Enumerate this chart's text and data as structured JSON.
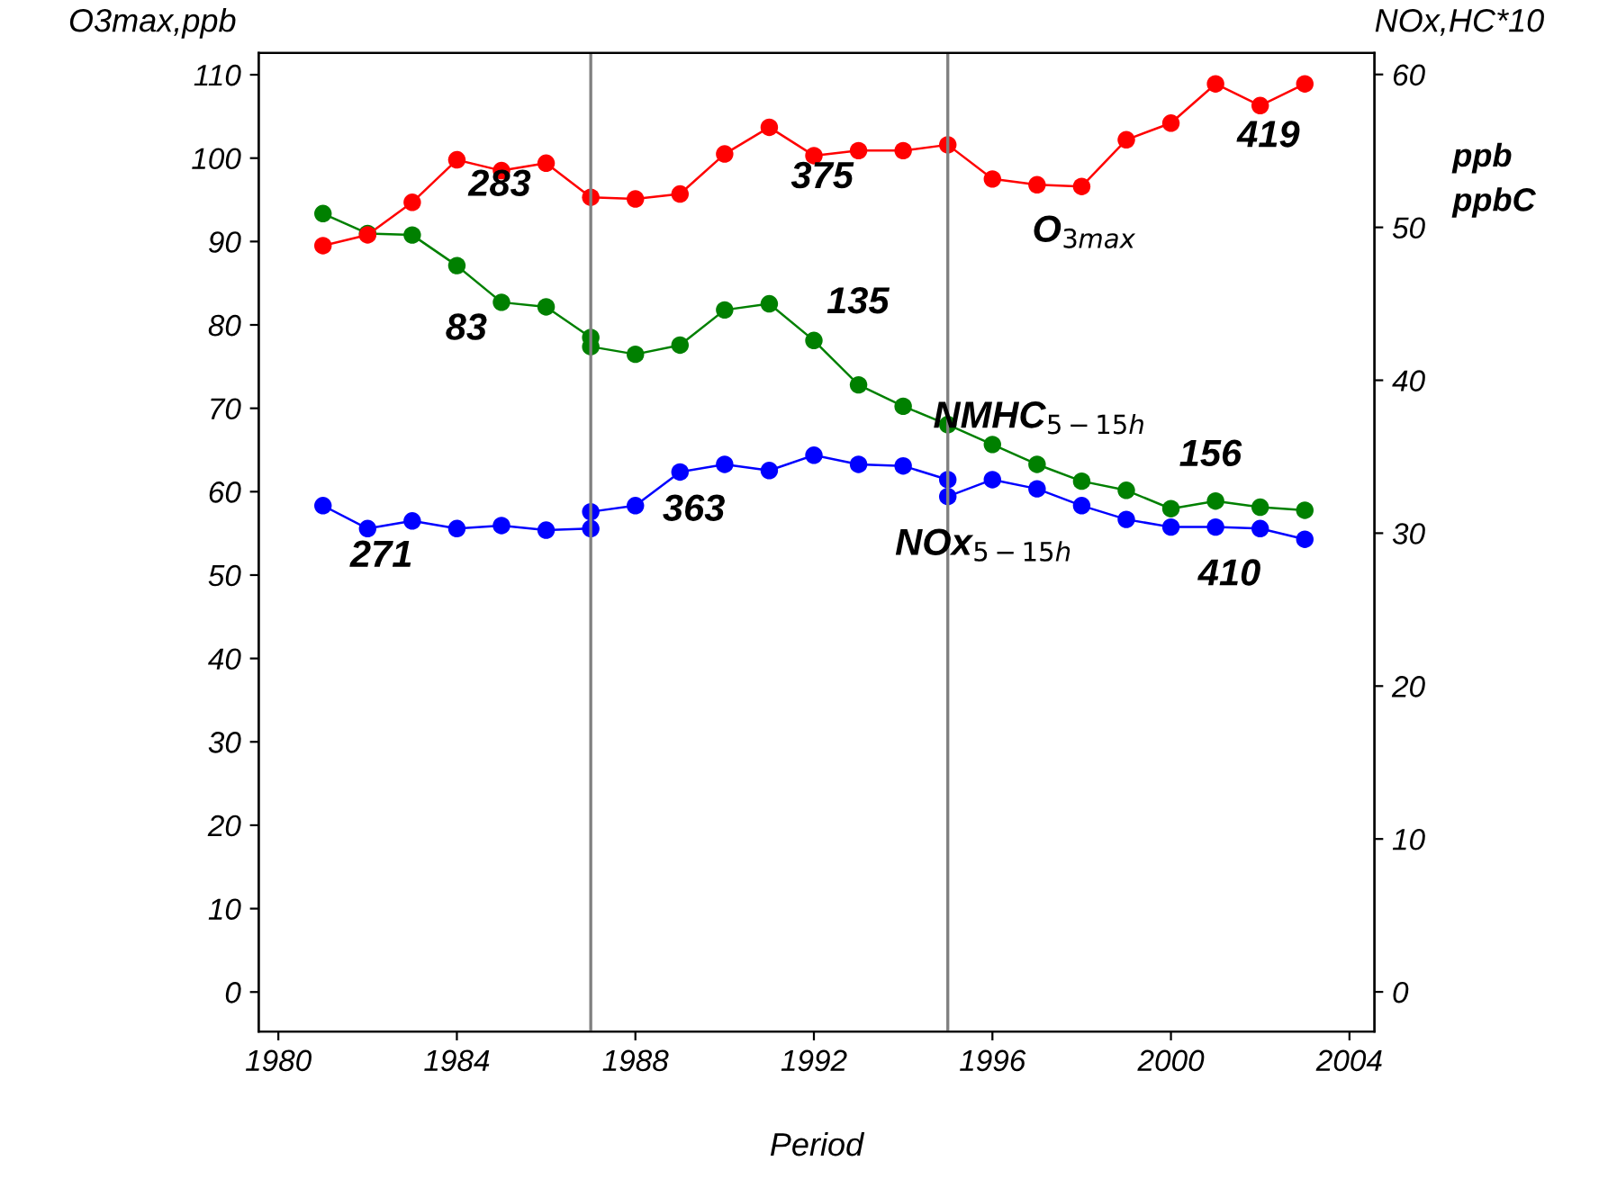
{
  "chart_data": {
    "type": "line",
    "xlabel": "Period",
    "ylabel": "O3max,ppb",
    "y2label": "NOx,HC*10",
    "xlim": [
      1979.56,
      2004.56
    ],
    "xticks": [
      1980,
      1984,
      1988,
      1992,
      1996,
      2000,
      2004
    ],
    "ylim": [
      -4.75,
      112.6
    ],
    "yticks": [
      0,
      10,
      20,
      30,
      40,
      50,
      60,
      70,
      80,
      90,
      100,
      110
    ],
    "y2lim": [
      -2.6,
      61.4
    ],
    "y2ticks": [
      0,
      10,
      20,
      30,
      40,
      50,
      60
    ],
    "marker": "circle",
    "grid": false,
    "legend": false,
    "series": [
      {
        "color": "#ff0000",
        "x": [
          1981,
          1982,
          1983,
          1984,
          1985,
          1986,
          1987,
          1988,
          1989,
          1990,
          1991,
          1992,
          1993,
          1994,
          1995,
          1996,
          1997,
          1998,
          1999,
          2000,
          2001,
          2002,
          2003
        ],
        "values": [
          89.5,
          90.8,
          94.7,
          99.8,
          98.5,
          99.4,
          95.3,
          95.1,
          95.7,
          100.5,
          103.7,
          100.3,
          100.9,
          100.9,
          101.6,
          97.5,
          96.8,
          96.6,
          102.2,
          104.2,
          108.9,
          106.3,
          108.9
        ]
      },
      {
        "color": "#008000",
        "axis": "y2",
        "x": [
          1981,
          1982,
          1983,
          1984,
          1985,
          1986,
          1987,
          1987,
          1988,
          1989,
          1990,
          1991,
          1992,
          1993,
          1994,
          1995,
          1996,
          1997,
          1998,
          1999,
          2000,
          2001,
          2002,
          2003
        ],
        "values": [
          50.9,
          49.6,
          49.5,
          47.5,
          45.1,
          44.8,
          42.8,
          42.2,
          41.7,
          42.3,
          44.6,
          45.0,
          42.6,
          39.7,
          38.3,
          37.1,
          35.8,
          34.5,
          33.4,
          32.8,
          31.6,
          32.1,
          31.7,
          31.5
        ]
      },
      {
        "color": "#0000ff",
        "axis": "y2",
        "x": [
          1981,
          1982,
          1983,
          1984,
          1985,
          1986,
          1987,
          1987,
          1988,
          1989,
          1990,
          1991,
          1992,
          1993,
          1994,
          1995,
          1995,
          1996,
          1997,
          1998,
          1999,
          2000,
          2001,
          2002,
          2003
        ],
        "values": [
          31.8,
          30.3,
          30.8,
          30.3,
          30.5,
          30.2,
          30.3,
          31.4,
          31.8,
          34.0,
          34.5,
          34.1,
          35.1,
          34.5,
          34.4,
          33.5,
          32.4,
          33.5,
          32.9,
          31.8,
          30.9,
          30.4,
          30.4,
          30.3,
          29.6
        ]
      }
    ],
    "ref_lines": [
      {
        "axis": "x",
        "value": 1987,
        "color": "#808080"
      },
      {
        "axis": "x",
        "value": 1995,
        "color": "#808080"
      }
    ],
    "annotations": [
      "283",
      "375",
      "419",
      "O$_{3max}$",
      "83",
      "135",
      "NMHC$_{5−15h}$",
      "156",
      "271",
      "363",
      "NOx$_{5−15h}$",
      "410",
      "ppb\nppbC"
    ]
  }
}
